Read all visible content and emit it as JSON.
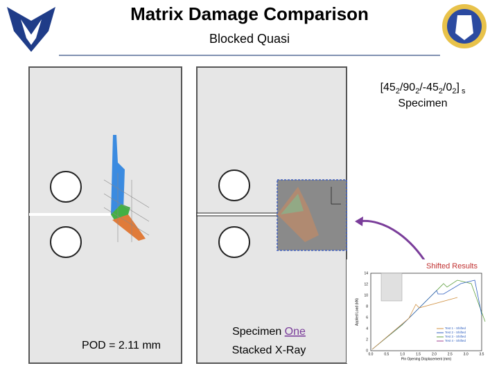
{
  "header": {
    "title": "Matrix Damage Comparison",
    "subtitle": "Blocked Quasi"
  },
  "layup": {
    "parts": [
      "[45",
      "2",
      "/90",
      "2",
      "/-45",
      "2",
      "/0",
      "2",
      "]",
      "s"
    ],
    "label": "Specimen"
  },
  "left_caption": "POD = 2.11 mm",
  "middle_caption": {
    "word1": "Specimen",
    "word2": "One",
    "line2": "Stacked X-Ray"
  },
  "inset": {
    "title": "Shifted Results",
    "y_axis": "Applied Load (kN)",
    "x_axis": "Pin Opening Displacement (mm)",
    "yticks": [
      "0",
      "2",
      "4",
      "6",
      "8",
      "10",
      "12",
      "14"
    ],
    "xticks": [
      "0.0",
      "0.5",
      "1.0",
      "1.5",
      "2.0",
      "2.5",
      "3.0",
      "3.5"
    ],
    "legend": [
      "Test 1 - Shifted",
      "Test 2 - Shifted",
      "Test 3 - Shifted",
      "Test 4 - Shifted"
    ]
  }
}
